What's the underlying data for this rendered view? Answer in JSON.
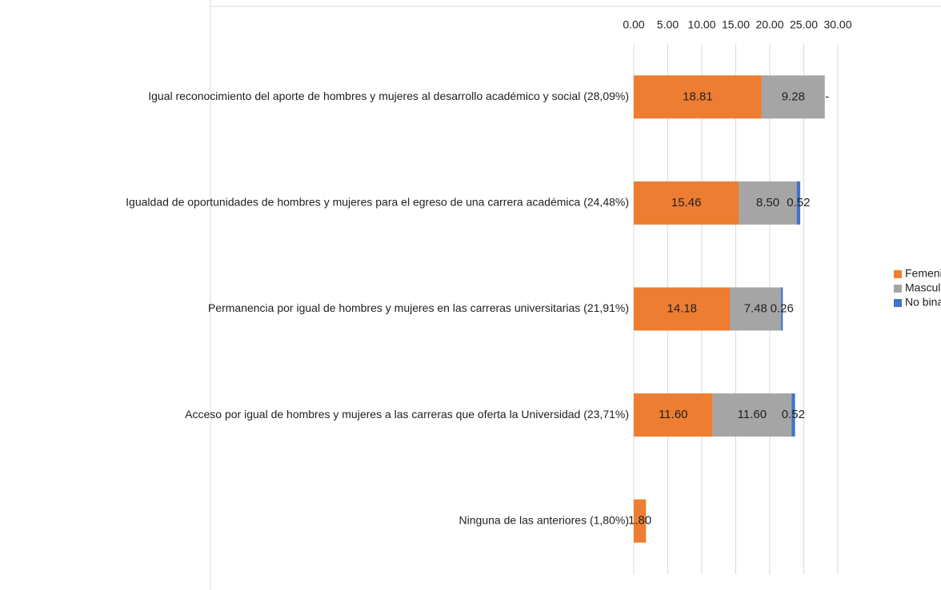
{
  "chart_data": {
    "type": "stacked_barh",
    "categories": [
      "Igual reconocimiento del aporte de hombres y mujeres al desarrollo académico y social (28,09%)",
      "Igualdad de oportunidades de hombres y mujeres para el egreso de una carrera académica (24,48%)",
      "Permanencia por igual de hombres y mujeres en las carreras universitarias (21,91%)",
      "Acceso por igual de hombres y mujeres a las carreras que oferta la Universidad (23,71%)",
      "Ninguna de las anteriores (1,80%)"
    ],
    "series": [
      {
        "name": "Femenino",
        "color": "#ed7d31",
        "values": [
          18.81,
          15.46,
          14.18,
          11.6,
          1.8
        ],
        "value_labels": [
          "18.81",
          "15.46",
          "14.18",
          "11.60",
          "1.80"
        ]
      },
      {
        "name": "Masculino",
        "color": "#a5a5a5",
        "values": [
          9.28,
          8.5,
          7.48,
          11.6,
          null
        ],
        "value_labels": [
          "9.28",
          "8.50",
          "7.48",
          "11.60",
          null
        ]
      },
      {
        "name": "No binario",
        "color": "#4472c4",
        "values": [
          0,
          0.52,
          0.26,
          0.52,
          null
        ],
        "value_labels": [
          "-",
          "0.52",
          "0.26",
          "0.52",
          null
        ]
      }
    ],
    "xlim": [
      0,
      30
    ],
    "xticks": [
      {
        "value": 0,
        "label": "0.00"
      },
      {
        "value": 5,
        "label": "5.00"
      },
      {
        "value": 10,
        "label": "10.00"
      },
      {
        "value": 15,
        "label": "15.00"
      },
      {
        "value": 20,
        "label": "20.00"
      },
      {
        "value": 25,
        "label": "25.00"
      },
      {
        "value": 30,
        "label": "30.00"
      }
    ],
    "grid": true,
    "legend": "right"
  }
}
